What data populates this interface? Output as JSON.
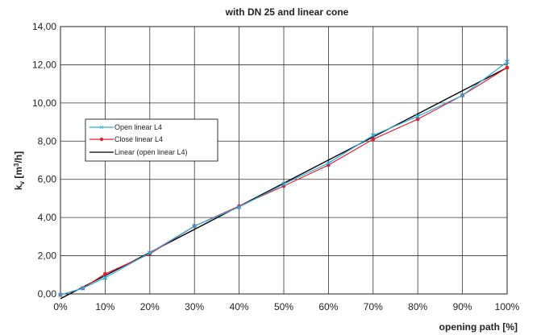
{
  "chart_data": {
    "type": "line",
    "title": "with DN 25 and linear cone",
    "xlabel": "opening path [%]",
    "ylabel_main": "k",
    "ylabel_sub": "v",
    "ylabel_unit": "[m",
    "ylabel_sup": "3",
    "ylabel_end": "/h]",
    "xlim": [
      0,
      100
    ],
    "ylim": [
      0,
      14
    ],
    "x_ticks": [
      0,
      10,
      20,
      30,
      40,
      50,
      60,
      70,
      80,
      90,
      100
    ],
    "x_tick_labels": [
      "0%",
      "10%",
      "20%",
      "30%",
      "40%",
      "50%",
      "60%",
      "70%",
      "80%",
      "90%",
      "100%"
    ],
    "y_ticks": [
      0,
      2,
      4,
      6,
      8,
      10,
      12,
      14
    ],
    "y_tick_labels": [
      "0,00",
      "2,00",
      "4,00",
      "6,00",
      "8,00",
      "10,00",
      "12,00",
      "14,00"
    ],
    "grid": true,
    "legend_position": "center-left",
    "series": [
      {
        "name": "Open linear L4",
        "color": "#29abe2",
        "marker": "x",
        "x": [
          0,
          5,
          10,
          20,
          30,
          40,
          50,
          60,
          70,
          80,
          90,
          100
        ],
        "y": [
          -0.05,
          0.3,
          0.85,
          2.15,
          3.55,
          4.55,
          5.75,
          6.85,
          8.3,
          9.3,
          10.4,
          12.15
        ]
      },
      {
        "name": "Close linear L4",
        "color": "#e02030",
        "marker": "circle",
        "x": [
          0,
          5,
          10,
          20,
          30,
          40,
          50,
          60,
          70,
          80,
          90,
          100
        ],
        "y": [
          -0.05,
          0.3,
          1.05,
          2.1,
          3.55,
          4.6,
          5.65,
          6.75,
          8.1,
          9.15,
          10.4,
          11.85
        ]
      },
      {
        "name": "Linear (open linear L4)",
        "color": "#000000",
        "marker": "none",
        "x": [
          0,
          100
        ],
        "y": [
          -0.25,
          11.85
        ]
      }
    ]
  }
}
